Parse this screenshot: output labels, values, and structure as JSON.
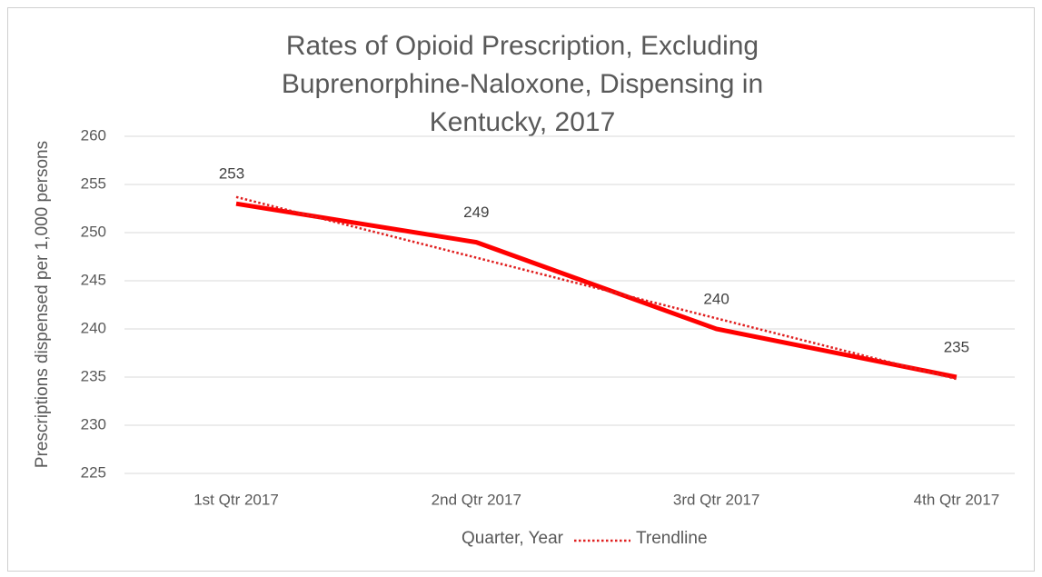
{
  "chart_data": {
    "type": "line",
    "title": "Rates of Opioid Prescription, Excluding Buprenorphine-Naloxone, Dispensing in Kentucky, 2017",
    "x_label": "Quarter, Year",
    "y_label": "Prescriptions dispensed per 1,000 persons",
    "categories": [
      "1st Qtr 2017",
      "2nd Qtr 2017",
      "3rd Qtr 2017",
      "4th Qtr 2017"
    ],
    "series": [
      {
        "color": "#ff0000",
        "values": [
          253,
          249,
          240,
          235
        ]
      },
      {
        "name": "Trendline",
        "color": "#e02020",
        "values": [
          253.7,
          247.4,
          241.1,
          234.8
        ]
      }
    ],
    "ylim": [
      225,
      260
    ],
    "yticks": [
      225,
      230,
      235,
      240,
      245,
      250,
      255,
      260
    ],
    "grid": true
  }
}
